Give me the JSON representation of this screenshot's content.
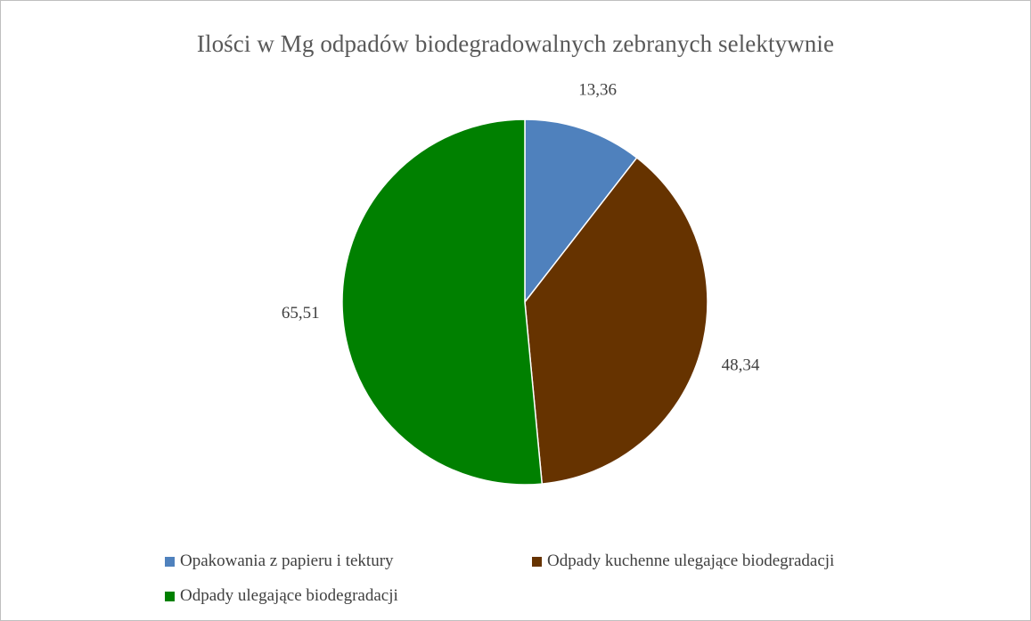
{
  "chart_data": {
    "type": "pie",
    "title": "Ilości w Mg odpadów biodegradowalnych zebranych selektywnie",
    "categories": [
      "Opakowania z papieru i tektury",
      "Odpady kuchenne ulegające biodegradacji",
      "Odpady ulegające biodegradacji"
    ],
    "values": [
      13.36,
      48.34,
      65.51
    ],
    "value_labels": [
      "13,36",
      "48,34",
      "65,51"
    ],
    "colors": [
      "#4f81bd",
      "#663300",
      "#008000"
    ],
    "start_angle_deg": 0,
    "direction": "clockwise",
    "legend_position": "bottom",
    "data_labels": "outside"
  }
}
